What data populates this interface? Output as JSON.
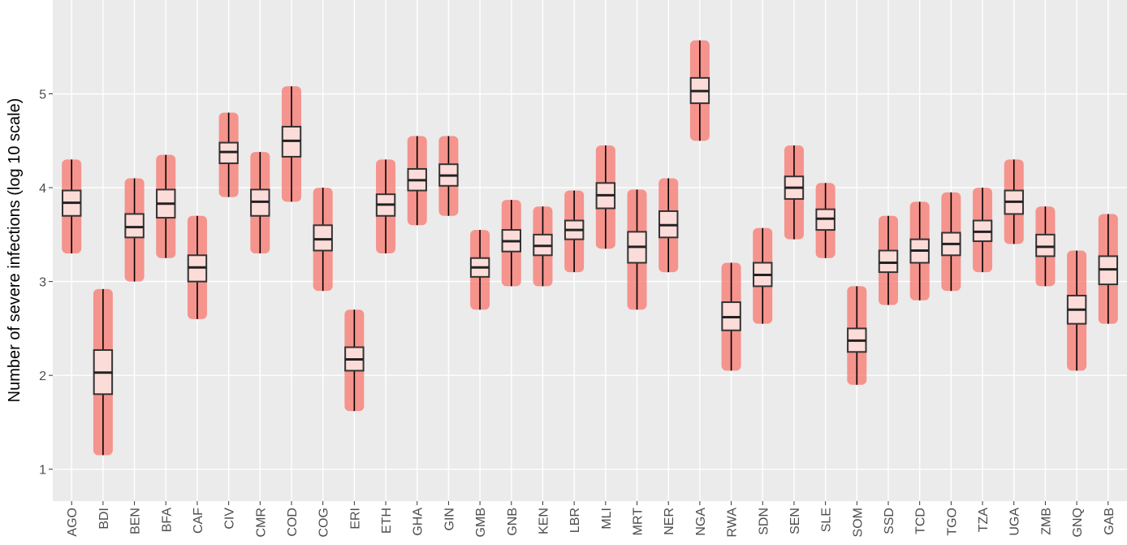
{
  "chart_data": {
    "type": "box",
    "y_label": "Number of severe infections (log 10 scale)",
    "categories": [
      "AGO",
      "BDI",
      "BEN",
      "BFA",
      "CAF",
      "CIV",
      "CMR",
      "COD",
      "COG",
      "ERI",
      "ETH",
      "GHA",
      "GIN",
      "GMB",
      "GNB",
      "KEN",
      "LBR",
      "MLI",
      "MRT",
      "NER",
      "NGA",
      "RWA",
      "SDN",
      "SEN",
      "SLE",
      "SOM",
      "SSD",
      "TCD",
      "TGO",
      "TZA",
      "UGA",
      "ZMB",
      "GNQ",
      "GAB"
    ],
    "whisker_low": [
      3.3,
      1.15,
      3.0,
      3.25,
      2.6,
      3.9,
      3.3,
      3.85,
      2.9,
      1.62,
      3.3,
      3.6,
      3.7,
      2.7,
      2.95,
      2.95,
      3.1,
      3.35,
      2.7,
      3.1,
      4.5,
      2.05,
      2.55,
      3.45,
      3.25,
      1.9,
      2.75,
      2.8,
      2.9,
      3.1,
      3.4,
      2.95,
      2.05,
      2.55
    ],
    "q1": [
      3.7,
      1.8,
      3.47,
      3.68,
      3.0,
      4.26,
      3.7,
      4.33,
      3.33,
      2.05,
      3.7,
      3.97,
      4.02,
      3.05,
      3.32,
      3.28,
      3.45,
      3.78,
      3.2,
      3.47,
      4.9,
      2.48,
      2.95,
      3.88,
      3.55,
      2.25,
      3.1,
      3.2,
      3.28,
      3.43,
      3.72,
      3.27,
      2.55,
      2.97
    ],
    "median": [
      3.84,
      2.03,
      3.58,
      3.83,
      3.15,
      4.38,
      3.85,
      4.5,
      3.45,
      2.17,
      3.82,
      4.08,
      4.13,
      3.15,
      3.43,
      3.38,
      3.55,
      3.92,
      3.37,
      3.6,
      5.03,
      2.62,
      3.07,
      4.0,
      3.67,
      2.37,
      3.2,
      3.33,
      3.4,
      3.53,
      3.85,
      3.37,
      2.7,
      3.13
    ],
    "q3": [
      3.97,
      2.27,
      3.72,
      3.98,
      3.28,
      4.48,
      3.98,
      4.65,
      3.6,
      2.3,
      3.93,
      4.2,
      4.25,
      3.25,
      3.55,
      3.5,
      3.65,
      4.05,
      3.53,
      3.75,
      5.17,
      2.78,
      3.2,
      4.12,
      3.77,
      2.5,
      3.33,
      3.45,
      3.52,
      3.65,
      3.97,
      3.5,
      2.85,
      3.27
    ],
    "whisker_high": [
      4.3,
      2.92,
      4.1,
      4.35,
      3.7,
      4.8,
      4.38,
      5.08,
      4.0,
      2.7,
      4.3,
      4.55,
      4.55,
      3.55,
      3.87,
      3.8,
      3.97,
      4.45,
      3.98,
      4.1,
      5.57,
      3.2,
      3.57,
      4.45,
      4.05,
      2.95,
      3.7,
      3.85,
      3.95,
      4.0,
      4.3,
      3.8,
      3.33,
      3.72
    ],
    "point_color": "#f8766d",
    "box_fill": "#fcdcd9",
    "ylim": [
      0.66,
      6.0
    ],
    "yticks": [
      1,
      2,
      3,
      4,
      5
    ],
    "grid": true
  }
}
